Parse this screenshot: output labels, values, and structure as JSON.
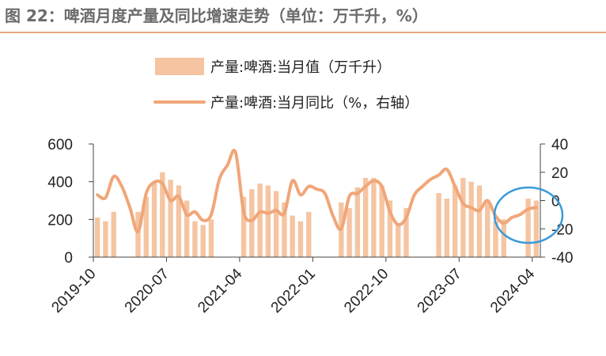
{
  "title": "图 22：啤酒月度产量及同比增速走势（单位：万千升，%）",
  "chart_data": {
    "type": "bar+line",
    "legend": [
      {
        "label": "产量:啤酒:当月值（万千升）",
        "marker": "bar",
        "color": "#f5c4a1"
      },
      {
        "label": "产量:啤酒:当月同比（%，右轴）",
        "marker": "line",
        "color": "#f0a679"
      }
    ],
    "left_axis": {
      "ylim": [
        0,
        600
      ],
      "ticks": [
        "0",
        "200",
        "400",
        "600"
      ]
    },
    "right_axis": {
      "ylim": [
        -40,
        40
      ],
      "ticks": [
        "-40",
        "-20",
        "0",
        "20",
        "40"
      ]
    },
    "x_ticks": [
      "2019-10",
      "2020-07",
      "2021-04",
      "2022-01",
      "2022-10",
      "2023-07",
      "2024-04"
    ],
    "months": [
      "2019-10",
      "2019-11",
      "2019-12",
      "2020-01",
      "2020-02",
      "2020-03",
      "2020-04",
      "2020-05",
      "2020-06",
      "2020-07",
      "2020-08",
      "2020-09",
      "2020-10",
      "2020-11",
      "2020-12",
      "2021-01",
      "2021-02",
      "2021-03",
      "2021-04",
      "2021-05",
      "2021-06",
      "2021-07",
      "2021-08",
      "2021-09",
      "2021-10",
      "2021-11",
      "2021-12",
      "2022-01",
      "2022-02",
      "2022-03",
      "2022-04",
      "2022-05",
      "2022-06",
      "2022-07",
      "2022-08",
      "2022-09",
      "2022-10",
      "2022-11",
      "2022-12",
      "2023-01",
      "2023-02",
      "2023-03",
      "2023-04",
      "2023-05",
      "2023-06",
      "2023-07",
      "2023-08",
      "2023-09",
      "2023-10",
      "2023-11",
      "2023-12",
      "2024-01",
      "2024-02",
      "2024-03",
      "2024-04"
    ],
    "series": [
      {
        "name": "产量:啤酒:当月值（万千升）",
        "type": "bar",
        "values": [
          210,
          190,
          240,
          null,
          null,
          240,
          320,
          400,
          450,
          410,
          380,
          300,
          190,
          170,
          200,
          null,
          null,
          null,
          320,
          360,
          390,
          380,
          350,
          290,
          220,
          190,
          240,
          null,
          null,
          null,
          290,
          260,
          370,
          420,
          420,
          380,
          300,
          180,
          260,
          null,
          null,
          null,
          340,
          310,
          380,
          420,
          400,
          380,
          290,
          190,
          200,
          null,
          null,
          310,
          300
        ]
      },
      {
        "name": "产量:啤酒:当月同比（%，右轴）",
        "type": "line",
        "axis": "right",
        "values": [
          4,
          2,
          17,
          10,
          -5,
          -22,
          5,
          13,
          12,
          0,
          3,
          -10,
          -8,
          -14,
          -10,
          15,
          25,
          34,
          -8,
          -14,
          -8,
          -9,
          -7,
          -9,
          14,
          4,
          10,
          8,
          5,
          -11,
          -20,
          3,
          5,
          10,
          14,
          10,
          -8,
          -17,
          -12,
          4,
          10,
          15,
          18,
          22,
          10,
          -2,
          -5,
          -7,
          0,
          -11,
          -16,
          -12,
          -10,
          -6,
          -5
        ]
      }
    ],
    "highlight": "circle around the last months (2024)"
  }
}
